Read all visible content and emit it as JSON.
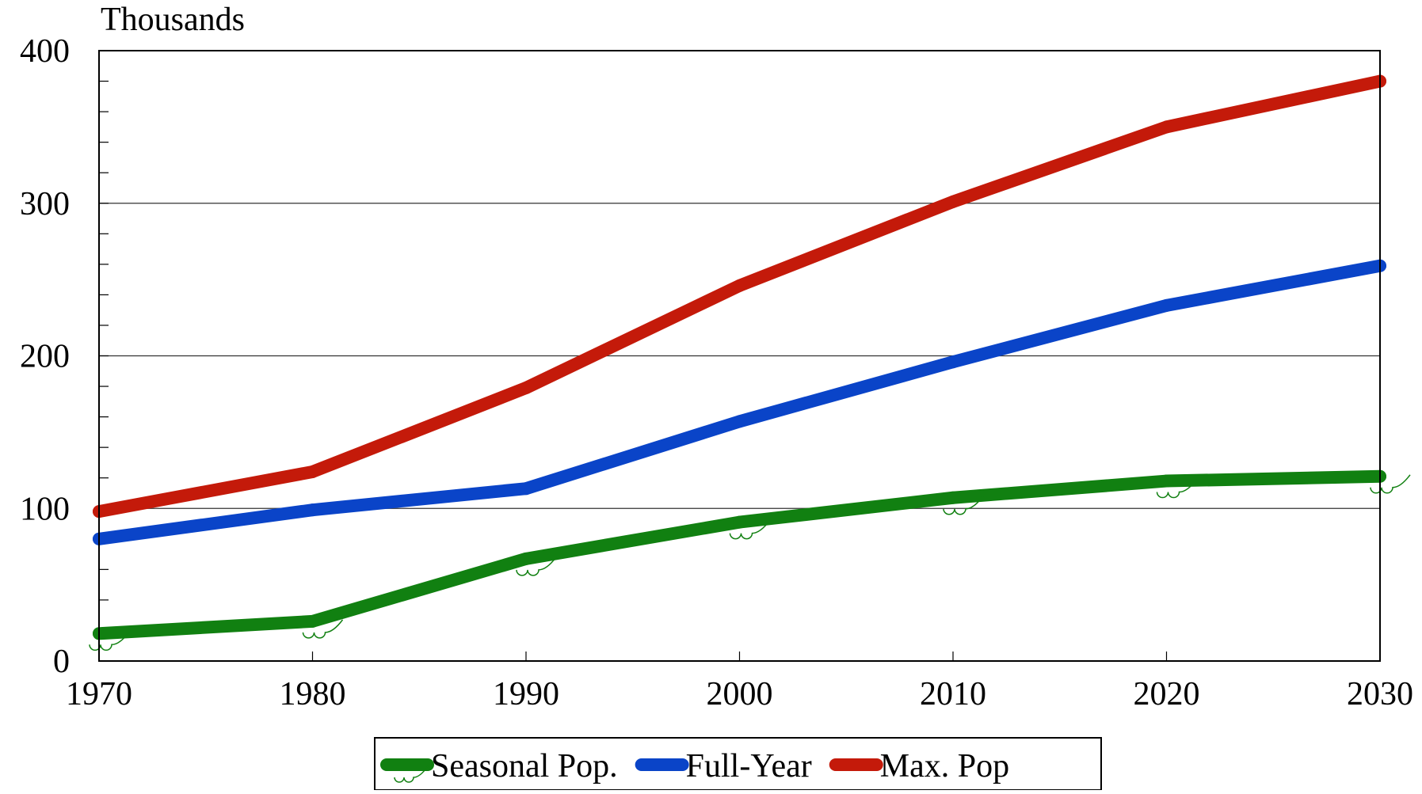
{
  "chart_data": {
    "type": "line",
    "ylabel": "Thousands",
    "x": [
      1970,
      1980,
      1990,
      2000,
      2010,
      2020,
      2030
    ],
    "xlim": [
      1970,
      2030
    ],
    "ylim": [
      0,
      400
    ],
    "x_ticks": [
      "1970",
      "1980",
      "1990",
      "2000",
      "2010",
      "2020",
      "2030"
    ],
    "y_ticks": [
      "0",
      "100",
      "200",
      "300",
      "400"
    ],
    "y_tick_values": [
      0,
      100,
      200,
      300,
      400
    ],
    "grid": "horizontal",
    "legend_position": "bottom-center",
    "series": [
      {
        "name": "Seasonal Pop.",
        "color": "#118011",
        "values": [
          18,
          26,
          67,
          91,
          107,
          118,
          121
        ]
      },
      {
        "name": "Full-Year",
        "color": "#0a44c8",
        "values": [
          80,
          99,
          113,
          157,
          196,
          233,
          259
        ]
      },
      {
        "name": "Max. Pop",
        "color": "#c41a0a",
        "values": [
          98,
          124,
          179,
          246,
          301,
          350,
          380
        ]
      }
    ]
  }
}
